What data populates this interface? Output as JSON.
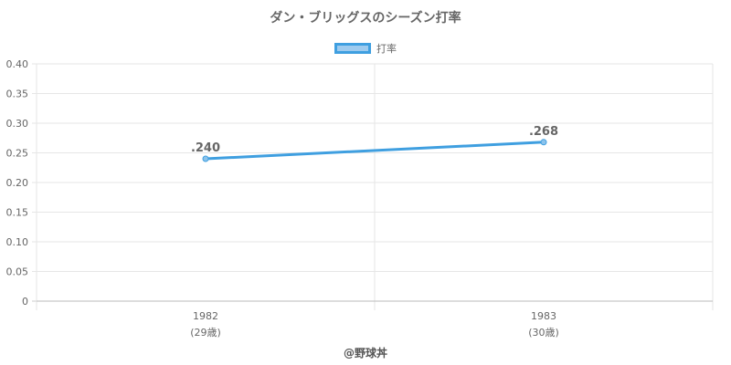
{
  "chart_data": {
    "type": "line",
    "title": "ダン・ブリッグスのシーズン打率",
    "categories": [
      "1982",
      "1983"
    ],
    "category_sublabels": [
      "(29歳)",
      "(30歳)"
    ],
    "series": [
      {
        "name": "打率",
        "values": [
          0.24,
          0.268
        ],
        "data_labels": [
          ".240",
          ".268"
        ],
        "color": "#3f9fe0"
      }
    ],
    "y_ticks": [
      "0",
      "0.05",
      "0.10",
      "0.15",
      "0.20",
      "0.25",
      "0.30",
      "0.35",
      "0.40"
    ],
    "ylim": [
      0,
      0.4
    ],
    "grid": true,
    "legend_position": "top"
  },
  "footer": {
    "credit": "@野球丼"
  }
}
